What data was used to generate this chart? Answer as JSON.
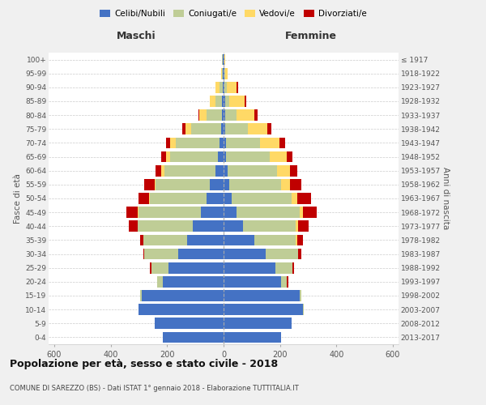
{
  "age_groups": [
    "0-4",
    "5-9",
    "10-14",
    "15-19",
    "20-24",
    "25-29",
    "30-34",
    "35-39",
    "40-44",
    "45-49",
    "50-54",
    "55-59",
    "60-64",
    "65-69",
    "70-74",
    "75-79",
    "80-84",
    "85-89",
    "90-94",
    "95-99",
    "100+"
  ],
  "birth_years": [
    "2013-2017",
    "2008-2012",
    "2003-2007",
    "1998-2002",
    "1993-1997",
    "1988-1992",
    "1983-1987",
    "1978-1982",
    "1973-1977",
    "1968-1972",
    "1963-1967",
    "1958-1962",
    "1953-1957",
    "1948-1952",
    "1943-1947",
    "1938-1942",
    "1933-1937",
    "1928-1932",
    "1923-1927",
    "1918-1922",
    "≤ 1917"
  ],
  "male": {
    "celibi": [
      215,
      245,
      300,
      290,
      215,
      195,
      160,
      130,
      110,
      80,
      60,
      50,
      30,
      20,
      15,
      10,
      5,
      5,
      3,
      2,
      2
    ],
    "coniugati": [
      0,
      0,
      0,
      5,
      20,
      60,
      120,
      155,
      195,
      220,
      200,
      190,
      180,
      170,
      155,
      105,
      55,
      25,
      12,
      4,
      3
    ],
    "vedovi": [
      0,
      0,
      0,
      0,
      0,
      0,
      0,
      0,
      0,
      5,
      5,
      5,
      10,
      15,
      20,
      20,
      25,
      20,
      15,
      3,
      1
    ],
    "divorziati": [
      0,
      0,
      0,
      0,
      0,
      5,
      5,
      10,
      30,
      40,
      35,
      35,
      20,
      15,
      15,
      10,
      5,
      0,
      0,
      0,
      0
    ]
  },
  "female": {
    "nubili": [
      205,
      240,
      280,
      270,
      205,
      185,
      150,
      110,
      70,
      45,
      30,
      20,
      15,
      10,
      8,
      5,
      5,
      5,
      3,
      2,
      2
    ],
    "coniugate": [
      0,
      0,
      5,
      5,
      20,
      60,
      115,
      145,
      185,
      225,
      210,
      185,
      175,
      155,
      120,
      80,
      40,
      15,
      8,
      3,
      2
    ],
    "vedove": [
      0,
      0,
      0,
      0,
      0,
      0,
      0,
      5,
      10,
      10,
      20,
      30,
      45,
      60,
      70,
      70,
      65,
      55,
      35,
      8,
      3
    ],
    "divorziate": [
      0,
      0,
      0,
      0,
      5,
      5,
      10,
      20,
      35,
      50,
      50,
      40,
      25,
      20,
      20,
      15,
      10,
      5,
      5,
      0,
      0
    ]
  },
  "colors": {
    "celibi": "#4472C4",
    "coniugati": "#BFCD96",
    "vedovi": "#FFD966",
    "divorziati": "#C00000"
  },
  "legend_labels": [
    "Celibi/Nubili",
    "Coniugati/e",
    "Vedovi/e",
    "Divorziati/e"
  ],
  "title": "Popolazione per età, sesso e stato civile - 2018",
  "subtitle": "COMUNE DI SAREZZO (BS) - Dati ISTAT 1° gennaio 2018 - Elaborazione TUTTITALIA.IT",
  "ylabel_left": "Fasce di età",
  "ylabel_right": "Anni di nascita",
  "xlabel_left": "Maschi",
  "xlabel_right": "Femmine",
  "xlim": 620,
  "bg_color": "#f0f0f0",
  "plot_bg": "#ffffff"
}
